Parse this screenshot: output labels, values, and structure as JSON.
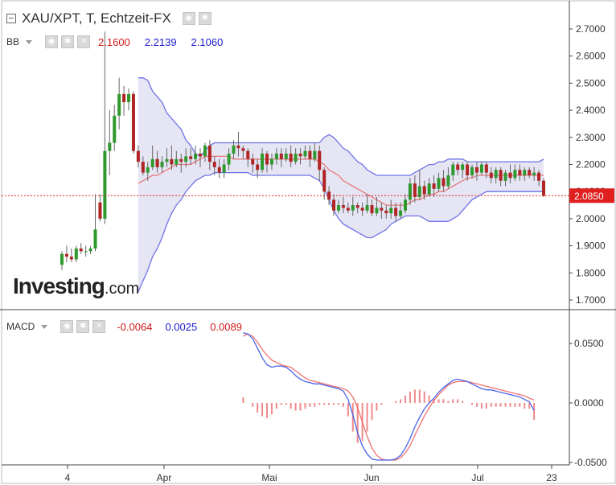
{
  "header": {
    "title": "XAU/XPT, T, Echtzeit-FX",
    "bb_label": "BB",
    "bb_values": [
      "2.1600",
      "2.2139",
      "2.1060"
    ],
    "macd_label": "MACD",
    "macd_values": [
      "-0.0064",
      "0.0025",
      "0.0089"
    ]
  },
  "watermark": {
    "main": "Investing",
    "suffix": ".com"
  },
  "colors": {
    "up": "#2e9a2e",
    "down": "#b02424",
    "band_fill": "#dcdcf0",
    "band_line": "#6f73e6",
    "mid": "#e87b7b",
    "macd": "#4a63e6",
    "signal": "#f07070",
    "hist": "#f08a8a",
    "price_line": "#e02020",
    "price_tag": "#e02020"
  },
  "chart_data": [
    {
      "type": "candlestick",
      "title": "XAU/XPT, T, Echtzeit-FX",
      "x_ticks": [
        "4",
        "Apr",
        "Mai",
        "Jun",
        "Jul",
        "23"
      ],
      "y_ticks": [
        "2.7000",
        "2.6000",
        "2.5000",
        "2.4000",
        "2.3000",
        "2.2000",
        "2.1000",
        "2.0000",
        "1.9000",
        "1.8000",
        "1.7000"
      ],
      "ylim": [
        1.68,
        2.76
      ],
      "last_price": "2.0850",
      "candles": [
        [
          1.83,
          1.87,
          1.81,
          1.88
        ],
        [
          1.87,
          1.86,
          1.84,
          1.9
        ],
        [
          1.86,
          1.85,
          1.84,
          1.89
        ],
        [
          1.85,
          1.89,
          1.84,
          1.9
        ],
        [
          1.89,
          1.88,
          1.87,
          1.91
        ],
        [
          1.88,
          1.88,
          1.86,
          1.9
        ],
        [
          1.88,
          1.89,
          1.87,
          1.9
        ],
        [
          1.89,
          1.96,
          1.88,
          2.09
        ],
        [
          2.06,
          2.0,
          1.99,
          2.09
        ],
        [
          2.0,
          2.25,
          1.98,
          2.69
        ],
        [
          2.25,
          2.28,
          2.16,
          2.4
        ],
        [
          2.28,
          2.38,
          2.25,
          2.42
        ],
        [
          2.38,
          2.46,
          2.33,
          2.52
        ],
        [
          2.46,
          2.43,
          2.38,
          2.49
        ],
        [
          2.43,
          2.46,
          2.4,
          2.48
        ],
        [
          2.46,
          2.25,
          2.24,
          2.47
        ],
        [
          2.25,
          2.21,
          2.19,
          2.27
        ],
        [
          2.21,
          2.17,
          2.16,
          2.23
        ],
        [
          2.17,
          2.19,
          2.14,
          2.21
        ],
        [
          2.19,
          2.22,
          2.18,
          2.27
        ],
        [
          2.22,
          2.19,
          2.17,
          2.25
        ],
        [
          2.19,
          2.21,
          2.17,
          2.23
        ],
        [
          2.21,
          2.22,
          2.19,
          2.26
        ],
        [
          2.22,
          2.2,
          2.18,
          2.27
        ],
        [
          2.2,
          2.22,
          2.19,
          2.25
        ],
        [
          2.22,
          2.21,
          2.17,
          2.24
        ],
        [
          2.21,
          2.23,
          2.19,
          2.26
        ],
        [
          2.23,
          2.22,
          2.2,
          2.26
        ],
        [
          2.22,
          2.24,
          2.2,
          2.27
        ],
        [
          2.24,
          2.23,
          2.19,
          2.26
        ],
        [
          2.23,
          2.27,
          2.21,
          2.28
        ],
        [
          2.27,
          2.21,
          2.18,
          2.29
        ],
        [
          2.21,
          2.19,
          2.16,
          2.23
        ],
        [
          2.19,
          2.17,
          2.15,
          2.22
        ],
        [
          2.17,
          2.2,
          2.15,
          2.22
        ],
        [
          2.2,
          2.24,
          2.18,
          2.26
        ],
        [
          2.24,
          2.27,
          2.22,
          2.29
        ],
        [
          2.27,
          2.26,
          2.23,
          2.32
        ],
        [
          2.26,
          2.25,
          2.22,
          2.27
        ],
        [
          2.25,
          2.22,
          2.19,
          2.26
        ],
        [
          2.22,
          2.2,
          2.17,
          2.24
        ],
        [
          2.2,
          2.18,
          2.15,
          2.22
        ],
        [
          2.18,
          2.24,
          2.17,
          2.26
        ],
        [
          2.24,
          2.2,
          2.17,
          2.25
        ],
        [
          2.2,
          2.22,
          2.18,
          2.24
        ],
        [
          2.22,
          2.24,
          2.2,
          2.26
        ],
        [
          2.24,
          2.22,
          2.19,
          2.26
        ],
        [
          2.22,
          2.24,
          2.21,
          2.26
        ],
        [
          2.24,
          2.21,
          2.19,
          2.27
        ],
        [
          2.21,
          2.24,
          2.2,
          2.26
        ],
        [
          2.24,
          2.23,
          2.2,
          2.26
        ],
        [
          2.23,
          2.25,
          2.22,
          2.27
        ],
        [
          2.25,
          2.22,
          2.19,
          2.27
        ],
        [
          2.22,
          2.25,
          2.21,
          2.28
        ],
        [
          2.25,
          2.18,
          2.14,
          2.27
        ],
        [
          2.18,
          2.1,
          2.07,
          2.19
        ],
        [
          2.1,
          2.07,
          2.05,
          2.12
        ],
        [
          2.07,
          2.03,
          2.01,
          2.09
        ],
        [
          2.03,
          2.05,
          2.02,
          2.07
        ],
        [
          2.05,
          2.04,
          2.02,
          2.08
        ],
        [
          2.04,
          2.03,
          2.02,
          2.06
        ],
        [
          2.03,
          2.05,
          2.01,
          2.08
        ],
        [
          2.05,
          2.04,
          2.02,
          2.06
        ],
        [
          2.04,
          2.03,
          2.01,
          2.06
        ],
        [
          2.03,
          2.05,
          2.02,
          2.09
        ],
        [
          2.05,
          2.02,
          2.01,
          2.07
        ],
        [
          2.02,
          2.04,
          2.01,
          2.08
        ],
        [
          2.04,
          2.03,
          2.0,
          2.06
        ],
        [
          2.03,
          2.02,
          2.0,
          2.05
        ],
        [
          2.02,
          2.04,
          2.0,
          2.07
        ],
        [
          2.04,
          2.01,
          1.99,
          2.06
        ],
        [
          2.01,
          2.03,
          2.0,
          2.06
        ],
        [
          2.03,
          2.07,
          2.02,
          2.09
        ],
        [
          2.07,
          2.13,
          2.05,
          2.15
        ],
        [
          2.13,
          2.08,
          2.06,
          2.16
        ],
        [
          2.08,
          2.12,
          2.07,
          2.18
        ],
        [
          2.12,
          2.09,
          2.07,
          2.14
        ],
        [
          2.09,
          2.13,
          2.08,
          2.15
        ],
        [
          2.13,
          2.11,
          2.08,
          2.16
        ],
        [
          2.11,
          2.15,
          2.1,
          2.17
        ],
        [
          2.15,
          2.12,
          2.1,
          2.18
        ],
        [
          2.12,
          2.16,
          2.11,
          2.19
        ],
        [
          2.16,
          2.2,
          2.14,
          2.21
        ],
        [
          2.2,
          2.18,
          2.16,
          2.21
        ],
        [
          2.18,
          2.2,
          2.15,
          2.21
        ],
        [
          2.2,
          2.16,
          2.14,
          2.21
        ],
        [
          2.16,
          2.19,
          2.15,
          2.2
        ],
        [
          2.19,
          2.17,
          2.14,
          2.21
        ],
        [
          2.17,
          2.2,
          2.16,
          2.21
        ],
        [
          2.2,
          2.17,
          2.15,
          2.21
        ],
        [
          2.17,
          2.15,
          2.13,
          2.19
        ],
        [
          2.15,
          2.18,
          2.13,
          2.19
        ],
        [
          2.18,
          2.14,
          2.12,
          2.19
        ],
        [
          2.14,
          2.17,
          2.12,
          2.18
        ],
        [
          2.17,
          2.15,
          2.13,
          2.2
        ],
        [
          2.15,
          2.18,
          2.14,
          2.2
        ],
        [
          2.18,
          2.16,
          2.14,
          2.2
        ],
        [
          2.16,
          2.18,
          2.14,
          2.19
        ],
        [
          2.18,
          2.16,
          2.15,
          2.19
        ],
        [
          2.16,
          2.17,
          2.14,
          2.19
        ],
        [
          2.17,
          2.14,
          2.12,
          2.18
        ],
        [
          2.14,
          2.085,
          2.08,
          2.15
        ]
      ],
      "bands_start_index": 16,
      "bb_upper": [
        2.52,
        2.52,
        2.51,
        2.47,
        2.45,
        2.43,
        2.39,
        2.37,
        2.35,
        2.33,
        2.29,
        2.27,
        2.24,
        2.23,
        2.25,
        2.27,
        2.28,
        2.28,
        2.28,
        2.28,
        2.28,
        2.28,
        2.28,
        2.28,
        2.28,
        2.28,
        2.28,
        2.28,
        2.28,
        2.28,
        2.28,
        2.28,
        2.28,
        2.28,
        2.28,
        2.28,
        2.28,
        2.28,
        2.28,
        2.3,
        2.31,
        2.3,
        2.28,
        2.26,
        2.25,
        2.23,
        2.21,
        2.2,
        2.18,
        2.17,
        2.16,
        2.16,
        2.16,
        2.16,
        2.16,
        2.16,
        2.16,
        2.16,
        2.17,
        2.18,
        2.19,
        2.2,
        2.2,
        2.21,
        2.21,
        2.22,
        2.22,
        2.22,
        2.22,
        2.21,
        2.21,
        2.21,
        2.21,
        2.21,
        2.21,
        2.21,
        2.21,
        2.21,
        2.21,
        2.21,
        2.21,
        2.21,
        2.21,
        2.21,
        2.21,
        2.22
      ],
      "bb_middle": [
        2.13,
        2.14,
        2.15,
        2.16,
        2.16,
        2.17,
        2.18,
        2.19,
        2.2,
        2.2,
        2.2,
        2.2,
        2.21,
        2.22,
        2.23,
        2.23,
        2.23,
        2.23,
        2.23,
        2.23,
        2.22,
        2.22,
        2.22,
        2.22,
        2.22,
        2.22,
        2.22,
        2.22,
        2.22,
        2.22,
        2.22,
        2.22,
        2.22,
        2.22,
        2.22,
        2.22,
        2.22,
        2.22,
        2.21,
        2.2,
        2.18,
        2.17,
        2.16,
        2.14,
        2.13,
        2.12,
        2.11,
        2.1,
        2.09,
        2.08,
        2.07,
        2.06,
        2.05,
        2.05,
        2.05,
        2.05,
        2.05,
        2.06,
        2.07,
        2.07,
        2.08,
        2.09,
        2.09,
        2.1,
        2.1,
        2.11,
        2.12,
        2.13,
        2.14,
        2.15,
        2.15,
        2.16,
        2.16,
        2.16,
        2.16,
        2.16,
        2.16,
        2.16,
        2.16,
        2.16,
        2.16,
        2.16,
        2.16,
        2.16,
        2.16,
        2.16
      ],
      "bb_lower": [
        1.73,
        1.77,
        1.81,
        1.86,
        1.89,
        1.93,
        1.98,
        2.02,
        2.05,
        2.07,
        2.1,
        2.12,
        2.14,
        2.15,
        2.16,
        2.16,
        2.17,
        2.17,
        2.17,
        2.17,
        2.17,
        2.17,
        2.17,
        2.17,
        2.16,
        2.16,
        2.16,
        2.16,
        2.16,
        2.16,
        2.16,
        2.16,
        2.16,
        2.16,
        2.16,
        2.16,
        2.16,
        2.15,
        2.14,
        2.11,
        2.07,
        2.03,
        2.0,
        1.98,
        1.97,
        1.96,
        1.95,
        1.94,
        1.93,
        1.93,
        1.94,
        1.95,
        1.96,
        1.98,
        1.99,
        2.0,
        2.01,
        2.01,
        2.01,
        2.01,
        2.0,
        1.99,
        1.99,
        1.99,
        1.99,
        1.99,
        2.0,
        2.01,
        2.03,
        2.05,
        2.07,
        2.08,
        2.09,
        2.1,
        2.1,
        2.1,
        2.1,
        2.1,
        2.1,
        2.1,
        2.1,
        2.1,
        2.1,
        2.1,
        2.1,
        2.1
      ]
    },
    {
      "type": "line",
      "title": "MACD",
      "y_ticks": [
        "0.0500",
        "0.0000",
        "-0.0500"
      ],
      "ylim": [
        -0.055,
        0.063
      ],
      "series_start_index": 38,
      "macd": [
        0.059,
        0.058,
        0.054,
        0.046,
        0.038,
        0.032,
        0.03,
        0.031,
        0.031,
        0.03,
        0.027,
        0.023,
        0.02,
        0.018,
        0.017,
        0.016,
        0.016,
        0.015,
        0.014,
        0.013,
        0.012,
        0.01,
        0.003,
        -0.01,
        -0.025,
        -0.036,
        -0.043,
        -0.047,
        -0.048,
        -0.048,
        -0.048,
        -0.048,
        -0.047,
        -0.044,
        -0.038,
        -0.03,
        -0.02,
        -0.012,
        -0.005,
        0.0,
        0.004,
        0.009,
        0.013,
        0.016,
        0.019,
        0.02,
        0.019,
        0.018,
        0.016,
        0.014,
        0.012,
        0.011,
        0.011,
        0.01,
        0.009,
        0.008,
        0.007,
        0.006,
        0.005,
        0.003,
        0.001,
        -0.0064
      ],
      "signal": [
        0.056,
        0.058,
        0.056,
        0.051,
        0.045,
        0.04,
        0.036,
        0.034,
        0.032,
        0.031,
        0.03,
        0.027,
        0.024,
        0.021,
        0.019,
        0.018,
        0.017,
        0.016,
        0.015,
        0.014,
        0.013,
        0.012,
        0.01,
        0.005,
        -0.004,
        -0.016,
        -0.028,
        -0.038,
        -0.044,
        -0.047,
        -0.048,
        -0.048,
        -0.048,
        -0.046,
        -0.042,
        -0.036,
        -0.027,
        -0.019,
        -0.011,
        -0.004,
        0.002,
        0.007,
        0.011,
        0.015,
        0.017,
        0.018,
        0.018,
        0.018,
        0.017,
        0.016,
        0.015,
        0.014,
        0.013,
        0.012,
        0.011,
        0.01,
        0.009,
        0.008,
        0.007,
        0.006,
        0.004,
        0.0025
      ]
    }
  ]
}
